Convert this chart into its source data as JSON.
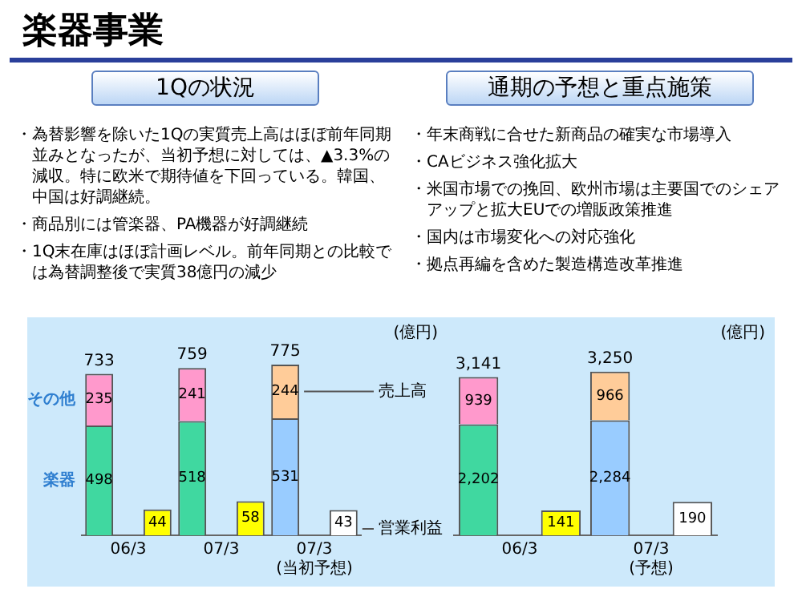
{
  "chart_data": [
    {
      "type": "bar",
      "title": "楽器事業",
      "subtitle": "1Qの状況",
      "ylabel": "(億円)",
      "annotations": [
        "・為替影響を除いた1Qの実質売上高はほぼ前年同期並みとなったが、当初予想に対しては、▲3.3%の減収。特に欧米で期待値を下回っている。韓国、中国は好調継続。",
        "・商品別には管楽器、PA機器が好調継続",
        "・1Q末在庫はほぼ計画レベル。前年同期との比較では為替調整後で実質38億円の減少",
        {
          "text": "売上高"
        },
        {
          "text": "営業利益"
        }
      ],
      "categories": [
        "06/3",
        "07/3",
        "07/3\n(当初予想)"
      ],
      "stacked": true,
      "data_labels": true,
      "totals": [
        "733",
        "759",
        "775"
      ],
      "legend": false,
      "grid": false,
      "series": [
        {
          "name": "楽器",
          "colors": [
            "#40d8a0",
            "#40d8a0",
            "#99ccff"
          ],
          "values": [
            498,
            518,
            531
          ]
        },
        {
          "name": "その他",
          "colors": [
            "#ff99cc",
            "#ff99cc",
            "#ffcc99"
          ],
          "values": [
            235,
            241,
            244
          ]
        },
        {
          "axis": "y2",
          "colors": [
            "#ffff00",
            "#ffff00",
            "#ffffff"
          ],
          "values": [
            44,
            58,
            43
          ]
        }
      ]
    },
    {
      "type": "bar",
      "subtitle": "通期の予想と重点施策",
      "ylabel": "(億円)",
      "annotations": [
        "・年末商戦に合せた新商品の確実な市場導入",
        "・CAビジネス強化拡大",
        "・米国市場での挽回、欧州市場は主要国でのシェアアップと拡大EUでの増販政策推進",
        "・国内は市場変化への対応強化",
        "・拠点再編を含めた製造構造改革推進"
      ],
      "categories": [
        "06/3",
        "07/3\n(予想)"
      ],
      "stacked": true,
      "totals": [
        "3,141",
        "3,250"
      ],
      "legend": false,
      "grid": false,
      "series": [
        {
          "colors": [
            "#40d8a0",
            "#99ccff"
          ],
          "values": [
            2202,
            2284
          ],
          "value_labels": [
            "2,202",
            "2,284"
          ]
        },
        {
          "colors": [
            "#ff99cc",
            "#ffcc99"
          ],
          "values": [
            939,
            966
          ],
          "value_labels": [
            "939",
            "966"
          ]
        },
        {
          "axis": "y2",
          "colors": [
            "#ffff00",
            "#ffffff"
          ],
          "values": [
            141,
            190
          ],
          "value_labels": [
            "141",
            "190"
          ]
        }
      ]
    }
  ]
}
